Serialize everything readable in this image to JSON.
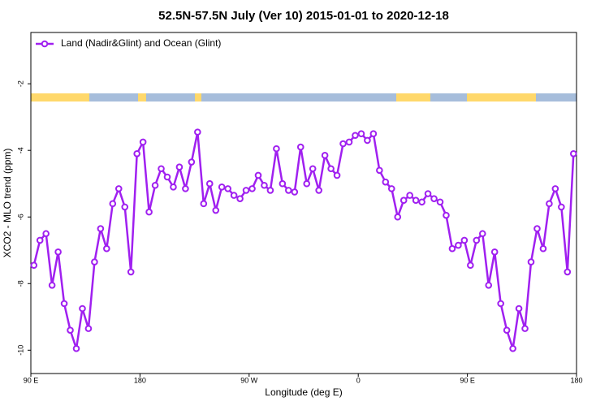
{
  "chart_data": {
    "type": "line",
    "title": "52.5N-57.5N July (Ver 10)   2015-01-01 to 2020-12-18",
    "xlabel": "Longitude (deg E)",
    "ylabel": "XCO2 - MLO trend (ppm)",
    "legend": "top-left",
    "x": [
      92.5,
      97.5,
      102.5,
      107.5,
      112.5,
      117.5,
      122.5,
      127.5,
      132.5,
      137.5,
      142.5,
      147.5,
      152.5,
      157.5,
      162.5,
      167.5,
      172.5,
      177.5,
      182.5,
      187.5,
      192.5,
      197.5,
      202.5,
      207.5,
      212.5,
      217.5,
      222.5,
      227.5,
      232.5,
      237.5,
      242.5,
      247.5,
      252.5,
      257.5,
      262.5,
      267.5,
      272.5,
      277.5,
      282.5,
      287.5,
      292.5,
      297.5,
      302.5,
      307.5,
      312.5,
      317.5,
      322.5,
      327.5,
      332.5,
      337.5,
      342.5,
      347.5,
      352.5,
      357.5,
      362.5,
      367.5,
      372.5,
      377.5,
      382.5,
      387.5,
      392.5,
      397.5,
      402.5,
      407.5,
      412.5,
      417.5,
      422.5,
      427.5,
      432.5,
      437.5,
      442.5,
      447.5,
      452.5,
      457.5,
      462.5,
      467.5,
      472.5,
      477.5,
      482.5,
      487.5,
      492.5,
      497.5,
      502.5,
      507.5,
      512.5,
      517.5,
      522.5,
      527.5,
      532.5,
      537.5
    ],
    "series": [
      {
        "name": "Land (Nadir&Glint) and Ocean (Glint)",
        "color": "#a020f0",
        "values": [
          -7.45,
          -6.7,
          -6.5,
          -8.05,
          -7.05,
          -8.6,
          -9.4,
          -9.95,
          -8.75,
          -9.35,
          -7.35,
          -6.35,
          -6.95,
          -5.6,
          -5.15,
          -5.7,
          -7.65,
          -4.1,
          -3.75,
          -5.85,
          -5.05,
          -4.55,
          -4.8,
          -5.1,
          -4.5,
          -5.15,
          -4.35,
          -3.45,
          -5.6,
          -5.0,
          -5.8,
          -5.1,
          -5.15,
          -5.35,
          -5.45,
          -5.2,
          -5.15,
          -4.75,
          -5.05,
          -5.2,
          -3.95,
          -5.0,
          -5.2,
          -5.25,
          -3.9,
          -5.0,
          -4.55,
          -5.2,
          -4.15,
          -4.55,
          -4.75,
          -3.8,
          -3.75,
          -3.55,
          -3.5,
          -3.7,
          -3.5,
          -4.6,
          -4.95,
          -5.15,
          -6.0,
          -5.5,
          -5.35,
          -5.5,
          -5.55,
          -5.3,
          -5.45,
          -5.55,
          -5.95,
          -6.95,
          -6.85,
          -6.7,
          -7.45,
          -6.7,
          -6.5,
          -8.05,
          -7.05,
          -8.6,
          -9.4,
          -9.95,
          -8.75,
          -9.35,
          -7.35,
          -6.35,
          -6.95,
          -5.6,
          -5.15,
          -5.7,
          -7.65,
          -4.1
        ]
      }
    ],
    "xlim": [
      90,
      540
    ],
    "xticks": [
      {
        "value": 90,
        "label": "90 E"
      },
      180,
      {
        "value": 270,
        "label": "90 W"
      },
      {
        "value": 360,
        "label": "0"
      },
      {
        "value": 450,
        "label": "90 E"
      },
      {
        "value": 540,
        "label": "180"
      }
    ],
    "ylim": [
      -10.7,
      -0.46
    ],
    "yticks": [
      -2,
      -4,
      -6,
      -8,
      -10
    ]
  }
}
